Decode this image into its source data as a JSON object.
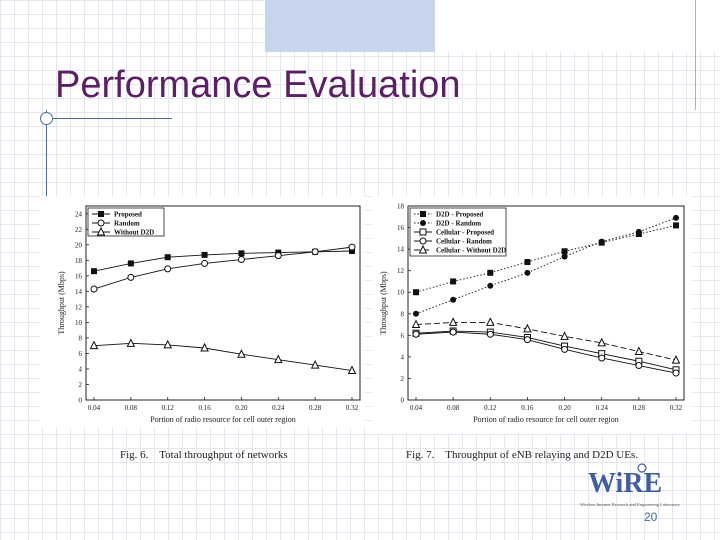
{
  "slide": {
    "title": "Performance Evaluation",
    "page_number": "20"
  },
  "logo": {
    "wordmark": "WiRE",
    "tagline": "Wireless Internet Research and Engineering Laboratory"
  },
  "colors": {
    "title": "#5c1e66",
    "accent_line": "#4a6aa8"
  },
  "chart_data": [
    {
      "type": "line",
      "caption": "Fig. 6.    Total throughput of networks",
      "xlabel": "Portion of radio resource for cell outer region",
      "ylabel": "Throughput (Mbps)",
      "x": [
        0.04,
        0.08,
        0.12,
        0.16,
        0.2,
        0.24,
        0.28,
        0.32
      ],
      "x_ticks": [
        "0.04",
        "0.08",
        "0.12",
        "0.16",
        "0.20",
        "0.24",
        "0.28",
        "0.32"
      ],
      "ylim": [
        0,
        25
      ],
      "y_ticks": [
        0,
        2,
        4,
        6,
        8,
        10,
        12,
        14,
        16,
        18,
        20,
        22,
        24
      ],
      "legend": "top-left",
      "grid": false,
      "series": [
        {
          "name": "Proposed",
          "marker": "square-filled",
          "dash": "solid",
          "values": [
            16.6,
            17.6,
            18.4,
            18.7,
            18.9,
            19.0,
            19.1,
            19.2
          ]
        },
        {
          "name": "Random",
          "marker": "circle-open",
          "dash": "solid",
          "values": [
            14.3,
            15.8,
            16.9,
            17.6,
            18.1,
            18.6,
            19.1,
            19.7
          ]
        },
        {
          "name": "Without D2D",
          "marker": "triangle-open",
          "dash": "solid",
          "values": [
            7.0,
            7.3,
            7.1,
            6.7,
            5.9,
            5.2,
            4.5,
            3.8
          ]
        }
      ]
    },
    {
      "type": "line",
      "caption": "Fig. 7.    Throughput of eNB relaying and D2D UEs.",
      "xlabel": "Portion of radio resource for cell outer region",
      "ylabel": "Throughput (Mbps)",
      "x": [
        0.04,
        0.08,
        0.12,
        0.16,
        0.2,
        0.24,
        0.28,
        0.32
      ],
      "x_ticks": [
        "0.04",
        "0.08",
        "0.12",
        "0.16",
        "0.20",
        "0.24",
        "0.28",
        "0.32"
      ],
      "ylim": [
        0,
        18
      ],
      "y_ticks": [
        0,
        2,
        4,
        6,
        8,
        10,
        12,
        14,
        16,
        18
      ],
      "legend": "top-left",
      "grid": false,
      "series": [
        {
          "name": "D2D - Proposed",
          "marker": "square-filled",
          "dash": "dotted",
          "values": [
            10.0,
            11.0,
            11.8,
            12.8,
            13.8,
            14.6,
            15.4,
            16.2
          ]
        },
        {
          "name": "D2D - Random",
          "marker": "circle-filled",
          "dash": "dotted",
          "values": [
            8.0,
            9.3,
            10.6,
            11.8,
            13.3,
            14.7,
            15.6,
            16.9
          ]
        },
        {
          "name": "Cellular - Proposed",
          "marker": "square-open",
          "dash": "solid",
          "values": [
            6.2,
            6.4,
            6.3,
            5.8,
            5.0,
            4.3,
            3.6,
            2.8
          ]
        },
        {
          "name": "Cellular - Random",
          "marker": "circle-open",
          "dash": "solid",
          "values": [
            6.1,
            6.3,
            6.1,
            5.6,
            4.7,
            3.9,
            3.2,
            2.5
          ]
        },
        {
          "name": "Cellular - Without D2D",
          "marker": "triangle-open",
          "dash": "dashed",
          "values": [
            7.0,
            7.2,
            7.2,
            6.6,
            5.9,
            5.3,
            4.5,
            3.7
          ]
        }
      ]
    }
  ]
}
